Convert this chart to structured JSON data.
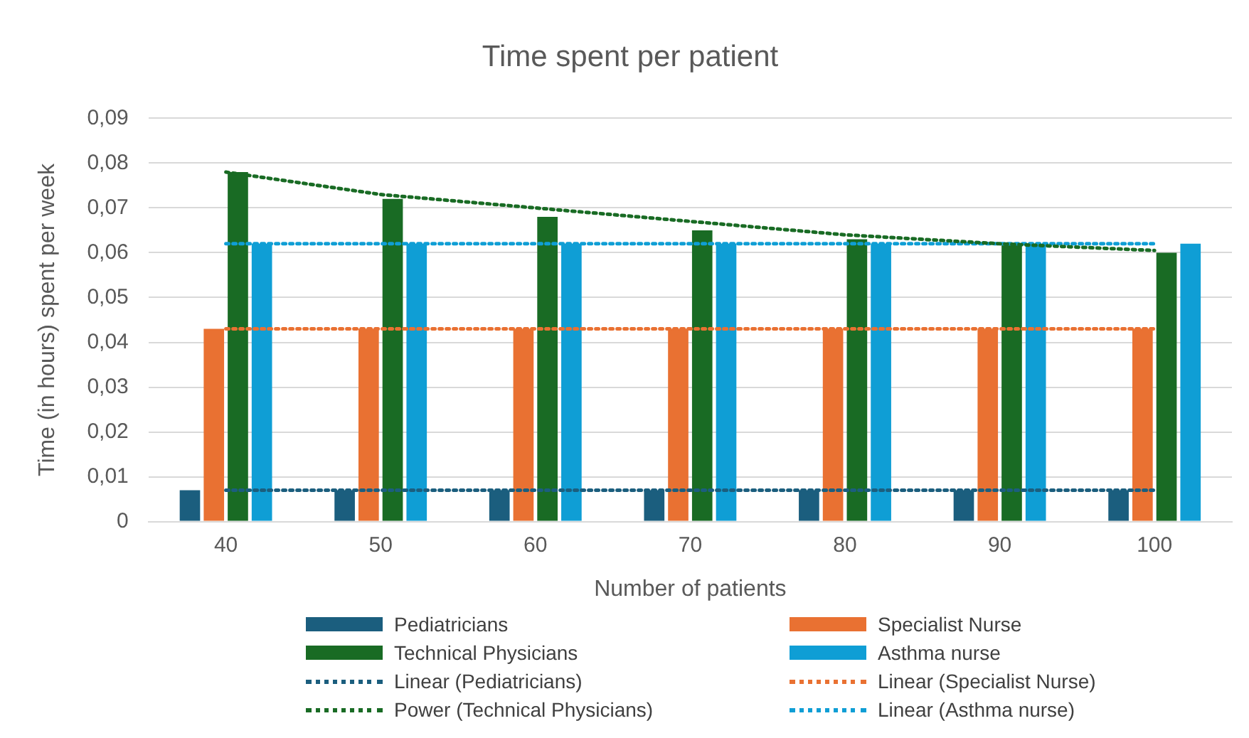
{
  "chart_data": {
    "type": "bar",
    "title": "Time spent per patient",
    "xlabel": "Number of patients",
    "ylabel": "Time (in hours) spent per week",
    "categories": [
      "40",
      "50",
      "60",
      "70",
      "80",
      "90",
      "100"
    ],
    "ylim": [
      0,
      0.09
    ],
    "yticks": [
      {
        "value": 0,
        "label": "0"
      },
      {
        "value": 0.01,
        "label": "0,01"
      },
      {
        "value": 0.02,
        "label": "0,02"
      },
      {
        "value": 0.03,
        "label": "0,03"
      },
      {
        "value": 0.04,
        "label": "0,04"
      },
      {
        "value": 0.05,
        "label": "0,05"
      },
      {
        "value": 0.06,
        "label": "0,06"
      },
      {
        "value": 0.07,
        "label": "0,07"
      },
      {
        "value": 0.08,
        "label": "0,08"
      },
      {
        "value": 0.09,
        "label": "0,09"
      }
    ],
    "grid": "y",
    "legend": "bottom",
    "series": [
      {
        "name": "Pediatricians",
        "color": "#1b5e7e",
        "values": [
          0.007,
          0.007,
          0.007,
          0.007,
          0.007,
          0.007,
          0.007
        ]
      },
      {
        "name": "Specialist Nurse",
        "color": "#e97132",
        "values": [
          0.043,
          0.043,
          0.043,
          0.043,
          0.043,
          0.043,
          0.043
        ]
      },
      {
        "name": "Technical Physicians",
        "color": "#196b24",
        "values": [
          0.078,
          0.072,
          0.068,
          0.065,
          0.063,
          0.062,
          0.06
        ]
      },
      {
        "name": "Asthma nurse",
        "color": "#0f9ed5",
        "values": [
          0.062,
          0.062,
          0.062,
          0.062,
          0.062,
          0.062,
          0.062
        ]
      },
      {
        "name": "Linear (Pediatricians)",
        "type": "line",
        "line_style": "dotted",
        "marker": "none",
        "color": "#1b5e7e",
        "values": [
          0.007,
          0.007,
          0.007,
          0.007,
          0.007,
          0.007,
          0.007
        ]
      },
      {
        "name": "Linear (Specialist Nurse)",
        "type": "line",
        "line_style": "dotted",
        "marker": "none",
        "color": "#e97132",
        "values": [
          0.043,
          0.043,
          0.043,
          0.043,
          0.043,
          0.043,
          0.043
        ]
      },
      {
        "name": "Power (Technical Physicians)",
        "type": "line",
        "line_style": "dotted",
        "marker": "none",
        "color": "#196b24",
        "values": [
          0.078,
          0.073,
          0.07,
          0.067,
          0.064,
          0.062,
          0.0605
        ]
      },
      {
        "name": "Linear (Asthma nurse)",
        "type": "line",
        "line_style": "dotted",
        "marker": "none",
        "color": "#0f9ed5",
        "values": [
          0.062,
          0.062,
          0.062,
          0.062,
          0.062,
          0.062,
          0.062
        ]
      }
    ]
  }
}
